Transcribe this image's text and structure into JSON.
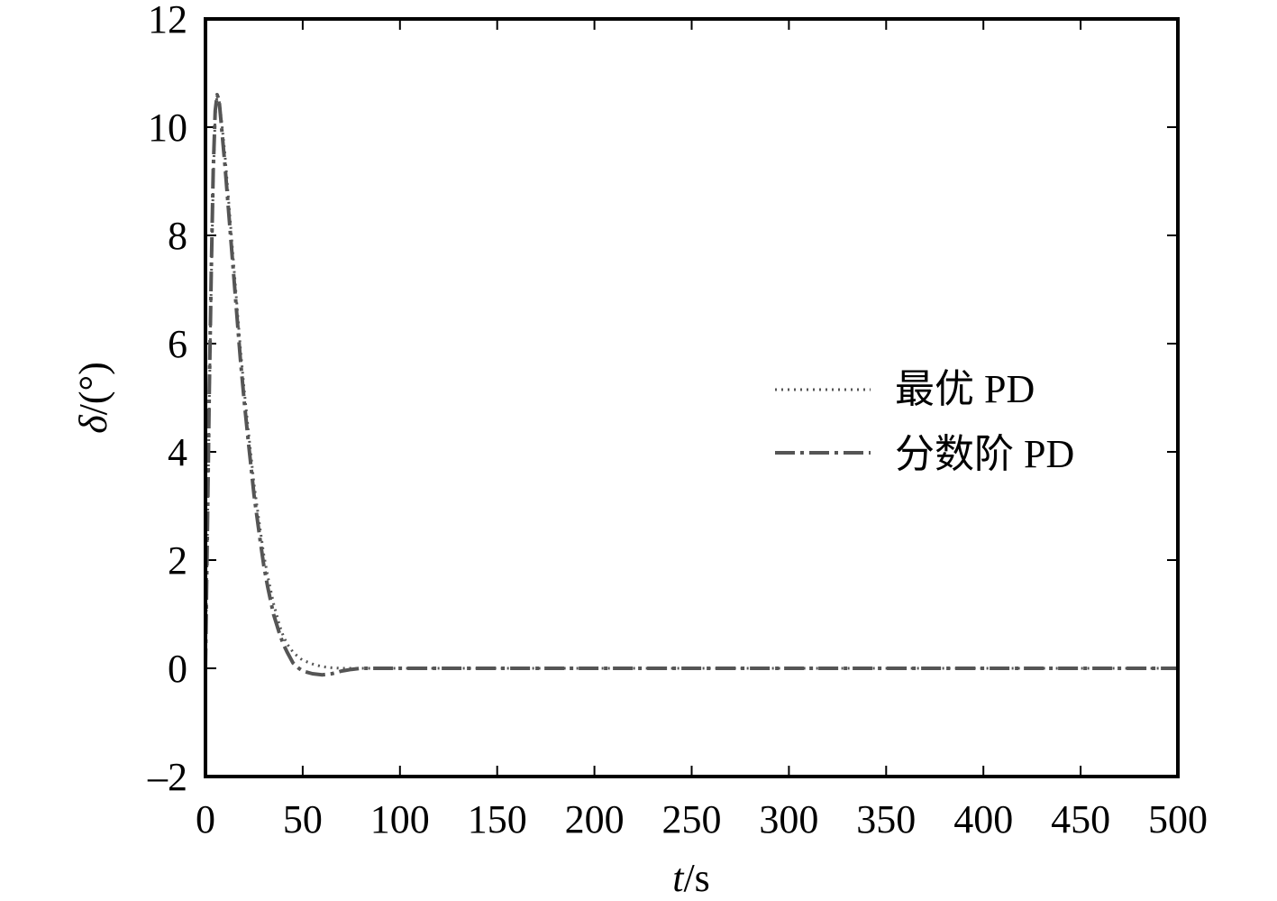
{
  "chart_data": {
    "type": "line",
    "xlabel_var": "t",
    "xlabel_unit": "/s",
    "ylabel_var": "δ",
    "ylabel_unit": "/(°)",
    "xlim": [
      0,
      500
    ],
    "ylim": [
      -2,
      12
    ],
    "xticks": [
      0,
      50,
      100,
      150,
      200,
      250,
      300,
      350,
      400,
      450,
      500
    ],
    "yticks": [
      -2,
      0,
      2,
      4,
      6,
      8,
      10,
      12
    ],
    "ytick_labels": [
      "–2",
      "0",
      "2",
      "4",
      "6",
      "8",
      "10",
      "12"
    ],
    "grid": false,
    "legend_position": "right",
    "series": [
      {
        "name": "最优 PD",
        "style": "dotted",
        "color": "#555555",
        "x": [
          0,
          1,
          2,
          3,
          4,
          5,
          6,
          7,
          8,
          10,
          12,
          14,
          16,
          18,
          20,
          22,
          25,
          28,
          30,
          32,
          35,
          38,
          40,
          42,
          45,
          48,
          50,
          55,
          60,
          65,
          70,
          80,
          90,
          100,
          150,
          200,
          250,
          300,
          350,
          400,
          450,
          500
        ],
        "y": [
          0,
          2.5,
          5.0,
          7.2,
          9.0,
          10.2,
          10.6,
          10.5,
          10.2,
          9.5,
          8.6,
          7.7,
          6.8,
          5.9,
          5.1,
          4.4,
          3.4,
          2.6,
          2.1,
          1.7,
          1.2,
          0.8,
          0.6,
          0.45,
          0.3,
          0.2,
          0.15,
          0.08,
          0.03,
          0.01,
          0.0,
          0.0,
          0.0,
          0.0,
          0.0,
          0.0,
          0.0,
          0.0,
          0.0,
          0.0,
          0.0,
          0.0
        ]
      },
      {
        "name": "分数阶 PD",
        "style": "dashdot",
        "color": "#555555",
        "x": [
          0,
          1,
          2,
          3,
          4,
          5,
          6,
          7,
          8,
          10,
          12,
          14,
          16,
          18,
          20,
          22,
          25,
          28,
          30,
          32,
          35,
          38,
          40,
          42,
          45,
          48,
          50,
          55,
          60,
          65,
          70,
          75,
          80,
          90,
          100,
          150,
          200,
          250,
          300,
          350,
          400,
          450,
          500
        ],
        "y": [
          0,
          2.6,
          5.2,
          7.4,
          9.2,
          10.3,
          10.6,
          10.5,
          10.1,
          9.3,
          8.4,
          7.5,
          6.6,
          5.7,
          4.9,
          4.2,
          3.2,
          2.4,
          1.9,
          1.5,
          1.0,
          0.65,
          0.45,
          0.3,
          0.1,
          0.0,
          -0.05,
          -0.1,
          -0.12,
          -0.1,
          -0.05,
          -0.02,
          0.0,
          0.0,
          0.0,
          0.0,
          0.0,
          0.0,
          0.0,
          0.0,
          0.0,
          0.0,
          0.0
        ]
      }
    ]
  }
}
